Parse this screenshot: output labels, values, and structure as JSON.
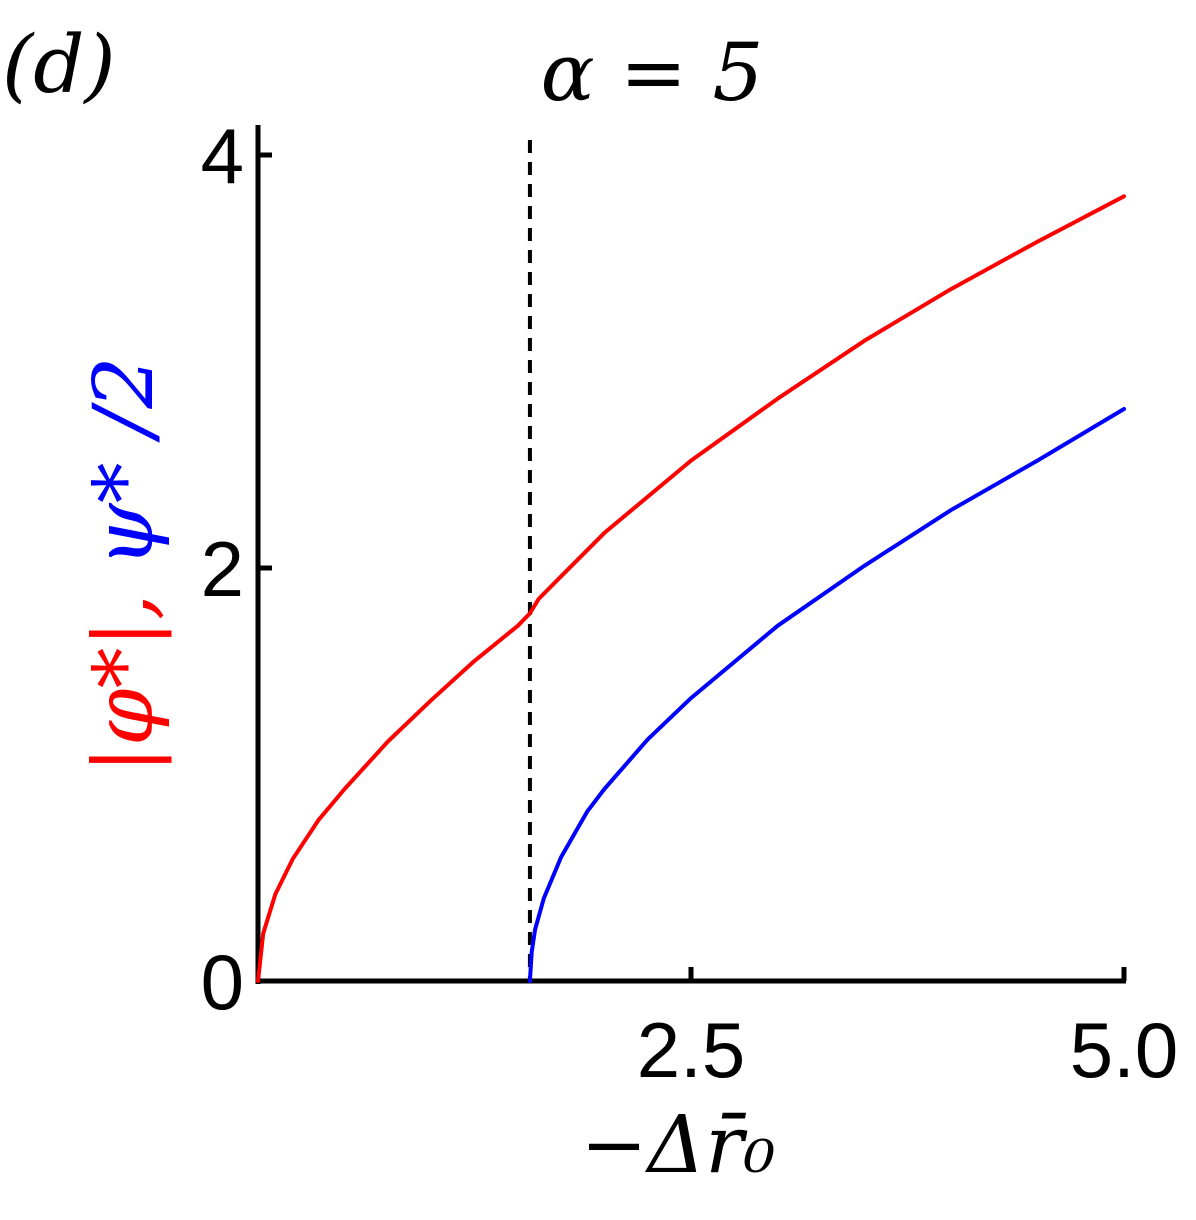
{
  "panel_label": "(d)",
  "chart_data": {
    "type": "line",
    "title": "α = 5",
    "xlabel": "−Δr̄₀",
    "ylabel_parts": [
      {
        "text": "|φ*|",
        "color": "#ff0000"
      },
      {
        "text": ", ",
        "color": "#ff0000"
      },
      {
        "text": "ψ* /2",
        "color": "#0000ff"
      }
    ],
    "xlim": [
      0,
      5.0
    ],
    "ylim": [
      0,
      4
    ],
    "x_ticks": [
      2.5,
      5.0
    ],
    "x_tick_labels": [
      "2.5",
      "5.0"
    ],
    "y_ticks": [
      0,
      2,
      4
    ],
    "y_tick_labels": [
      "0",
      "2",
      "4"
    ],
    "grid": false,
    "vline": {
      "x": 1.57,
      "style": "dashed",
      "color": "#000000"
    },
    "series": [
      {
        "color": "#ff0000",
        "points": [
          [
            0,
            0
          ],
          [
            0.03,
            0.23
          ],
          [
            0.1,
            0.42
          ],
          [
            0.2,
            0.59
          ],
          [
            0.35,
            0.78
          ],
          [
            0.5,
            0.93
          ],
          [
            0.75,
            1.16
          ],
          [
            1.0,
            1.36
          ],
          [
            1.25,
            1.55
          ],
          [
            1.5,
            1.72
          ],
          [
            1.57,
            1.78
          ],
          [
            1.62,
            1.85
          ],
          [
            1.75,
            1.96
          ],
          [
            2.0,
            2.17
          ],
          [
            2.5,
            2.52
          ],
          [
            3.0,
            2.82
          ],
          [
            3.5,
            3.1
          ],
          [
            4.0,
            3.35
          ],
          [
            4.5,
            3.58
          ],
          [
            5.0,
            3.8
          ]
        ]
      },
      {
        "color": "#0000ff",
        "points": [
          [
            1.57,
            0
          ],
          [
            1.58,
            0.14
          ],
          [
            1.6,
            0.25
          ],
          [
            1.65,
            0.4
          ],
          [
            1.75,
            0.6
          ],
          [
            1.9,
            0.82
          ],
          [
            2.0,
            0.93
          ],
          [
            2.25,
            1.17
          ],
          [
            2.5,
            1.37
          ],
          [
            3.0,
            1.72
          ],
          [
            3.5,
            2.01
          ],
          [
            4.0,
            2.28
          ],
          [
            4.5,
            2.52
          ],
          [
            5.0,
            2.77
          ]
        ]
      }
    ]
  }
}
